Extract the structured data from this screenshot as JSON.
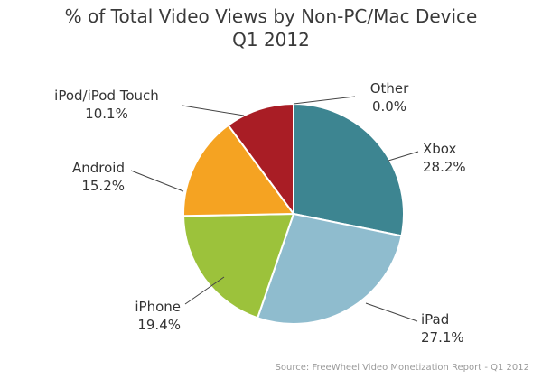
{
  "chart_data": {
    "type": "pie",
    "title": "% of Total Video Views by Non-PC/Mac Device",
    "subtitle": "Q1 2012",
    "slices": [
      {
        "label": "Xbox",
        "value": 28.2,
        "value_label": "28.2%",
        "color": "#3d8591"
      },
      {
        "label": "iPad",
        "value": 27.1,
        "value_label": "27.1%",
        "color": "#8fbcce"
      },
      {
        "label": "iPhone",
        "value": 19.4,
        "value_label": "19.4%",
        "color": "#9cc23b"
      },
      {
        "label": "Android",
        "value": 15.2,
        "value_label": "15.2%",
        "color": "#f5a322"
      },
      {
        "label": "iPod/iPod Touch",
        "value": 10.1,
        "value_label": "10.1%",
        "color": "#a91d25"
      },
      {
        "label": "Other",
        "value": 0.0,
        "value_label": "0.0%",
        "color": "#cccccc"
      }
    ],
    "source": "Source: FreeWheel Video Monetization Report - Q1 2012"
  }
}
